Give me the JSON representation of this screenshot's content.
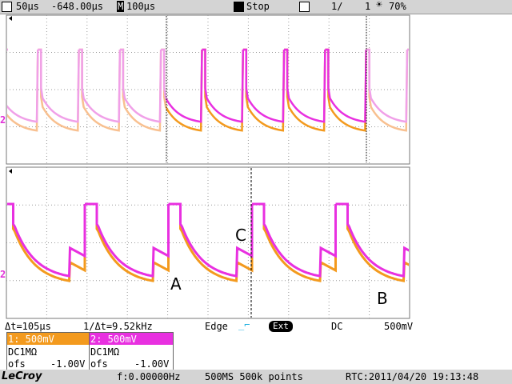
{
  "status_bar": {
    "timebase": "50µs",
    "delay": "-648.00µs",
    "zoom_icon": "M",
    "zoom_timebase": "100µs",
    "state": "Stop",
    "acq_count": "1/",
    "acq_total": "1",
    "intensity": "70%"
  },
  "annotations": {
    "a": "A",
    "b": "B",
    "c": "C"
  },
  "trace_markers": {
    "upper": "2",
    "lower": "2"
  },
  "readout": {
    "delta_t": "Δt=105µs",
    "inv_delta_t": "1/Δt=9.52kHz",
    "trigger_type": "Edge",
    "trigger_source": "Ext",
    "coupling": "DC",
    "trigger_level": "500mV"
  },
  "channels": [
    {
      "label": "1: 500mV",
      "coupling": "DC1MΩ",
      "offset_label": "ofs",
      "offset": "-1.00V"
    },
    {
      "label": "2: 500mV",
      "coupling": "DC1MΩ",
      "offset_label": "ofs",
      "offset": "-1.00V"
    }
  ],
  "footer": {
    "brand": "LeCroy",
    "frequency": "f:0.00000Hz",
    "sampling": "500MS 500k points",
    "clock": "RTC:2011/04/20 19:13:48"
  }
}
